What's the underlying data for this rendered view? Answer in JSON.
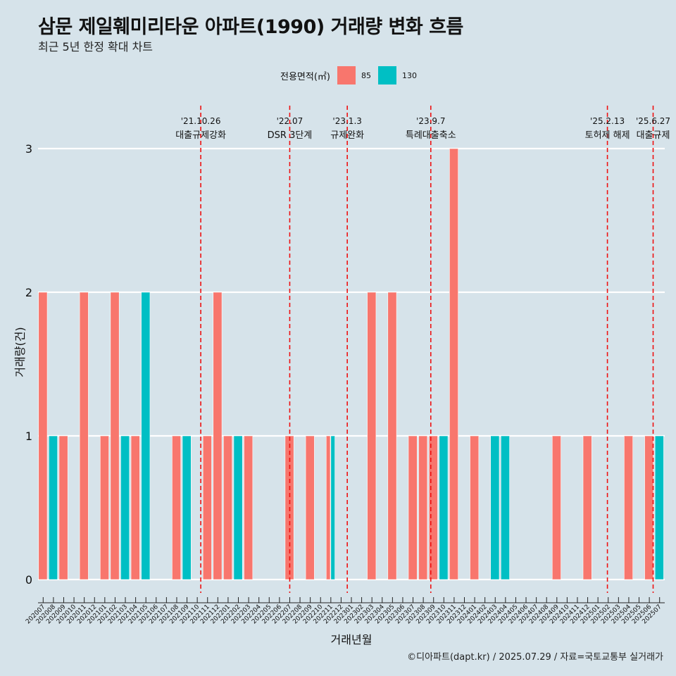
{
  "title": "삼문 제일훼미리타운 아파트(1990) 거래량 변화 흐름",
  "subtitle": "최근 5년 한정 확대 차트",
  "caption": "©디아파트(dapt.kr) / 2025.07.29 / 자료=국토교통부 실거래가",
  "legend": {
    "title": "전용면적(㎡)",
    "items": [
      {
        "label": "85",
        "color": "#f8766d"
      },
      {
        "label": "130",
        "color": "#00bfc4"
      }
    ]
  },
  "chart_data": {
    "type": "bar",
    "title": "삼문 제일훼미리타운 아파트(1990) 거래량 변화 흐름",
    "xlabel": "거래년월",
    "ylabel": "거래량(건)",
    "ylim": [
      0,
      3
    ],
    "yticks": [
      0,
      1,
      2,
      3
    ],
    "categories": [
      "202007",
      "202008",
      "202009",
      "202010",
      "202011",
      "202012",
      "202101",
      "202102",
      "202103",
      "202104",
      "202105",
      "202106",
      "202107",
      "202108",
      "202109",
      "202110",
      "202111",
      "202112",
      "202201",
      "202202",
      "202203",
      "202204",
      "202205",
      "202206",
      "202207",
      "202208",
      "202209",
      "202210",
      "202211",
      "202212",
      "202301",
      "202302",
      "202303",
      "202304",
      "202305",
      "202306",
      "202307",
      "202308",
      "202309",
      "202310",
      "202311",
      "202312",
      "202401",
      "202402",
      "202403",
      "202404",
      "202405",
      "202406",
      "202407",
      "202408",
      "202409",
      "202410",
      "202411",
      "202412",
      "202501",
      "202502",
      "202503",
      "202504",
      "202505",
      "202506",
      "202507"
    ],
    "series": [
      {
        "name": "85",
        "color": "#f8766d",
        "values": [
          2,
          0,
          1,
          0,
          2,
          0,
          1,
          2,
          0,
          1,
          0,
          0,
          0,
          1,
          0,
          0,
          1,
          2,
          1,
          0,
          1,
          0,
          0,
          0,
          1,
          0,
          1,
          0,
          1,
          0,
          0,
          0,
          2,
          0,
          2,
          0,
          1,
          1,
          1,
          0,
          3,
          0,
          1,
          0,
          0,
          0,
          0,
          0,
          0,
          0,
          1,
          0,
          0,
          1,
          0,
          0,
          0,
          1,
          0,
          1,
          0
        ]
      },
      {
        "name": "130",
        "color": "#00bfc4",
        "values": [
          0,
          1,
          0,
          0,
          0,
          0,
          0,
          0,
          1,
          0,
          2,
          0,
          0,
          0,
          1,
          0,
          0,
          0,
          0,
          1,
          0,
          0,
          0,
          0,
          0,
          0,
          0,
          0,
          1,
          0,
          0,
          0,
          0,
          0,
          0,
          0,
          0,
          0,
          0,
          1,
          0,
          0,
          0,
          0,
          1,
          1,
          0,
          0,
          0,
          0,
          0,
          0,
          0,
          0,
          0,
          0,
          0,
          0,
          0,
          0,
          1
        ]
      }
    ],
    "events": [
      {
        "date": "'21.10.26",
        "label": "대출규제강화",
        "month": "202110",
        "offset": 0.84
      },
      {
        "date": "'22.07",
        "label": "DSR 3단계",
        "month": "202207",
        "offset": 0.5
      },
      {
        "date": "'23.1.3",
        "label": "규제완화",
        "month": "202301",
        "offset": 0.1
      },
      {
        "date": "'23.9.7",
        "label": "특례대출축소",
        "month": "202309",
        "offset": 0.23
      },
      {
        "date": "'25.2.13",
        "label": "토허제 해제",
        "month": "202502",
        "offset": 0.42
      },
      {
        "date": "'25.6.27",
        "label": "대출규제",
        "month": "202506",
        "offset": 0.87
      }
    ]
  }
}
